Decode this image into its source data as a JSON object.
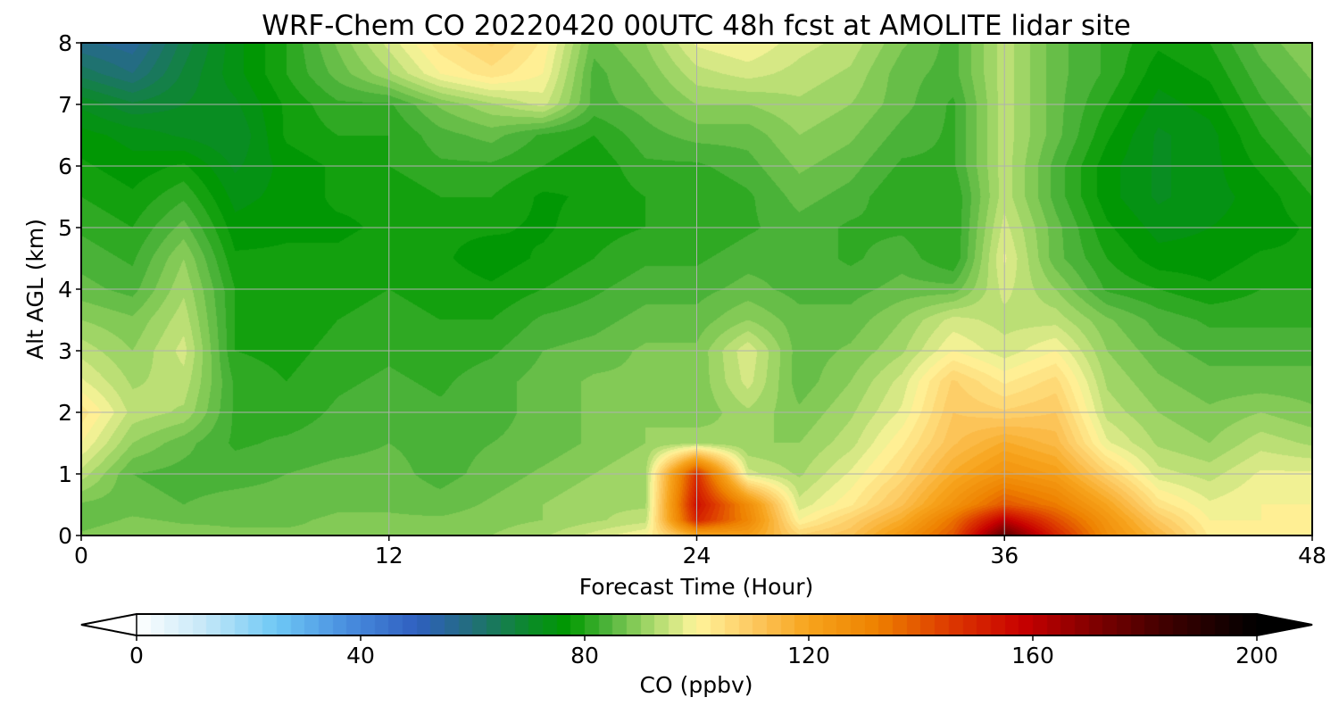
{
  "chart_data": {
    "type": "heatmap",
    "title": "WRF-Chem CO  20220420 00UTC 48h fcst at AMOLITE lidar site",
    "xlabel": "Forecast Time (Hour)",
    "ylabel": "Alt AGL (km)",
    "xlim": [
      0,
      48
    ],
    "ylim": [
      0,
      8
    ],
    "x_ticks": [
      "0",
      "12",
      "24",
      "36",
      "48"
    ],
    "y_ticks": [
      "0",
      "1",
      "2",
      "3",
      "4",
      "5",
      "6",
      "7",
      "8"
    ],
    "grid": true,
    "colorbar": {
      "label": "CO  (ppbv)",
      "range": [
        0,
        200
      ],
      "ticks": [
        "0",
        "40",
        "80",
        "120",
        "160",
        "200"
      ],
      "extend": "both",
      "placement": "bottom",
      "stops": [
        {
          "value": 0,
          "color": "#ffffff"
        },
        {
          "value": 12,
          "color": "#c6e8f8"
        },
        {
          "value": 25,
          "color": "#6ec8f5"
        },
        {
          "value": 37,
          "color": "#4a90e0"
        },
        {
          "value": 50,
          "color": "#2f5fc0"
        },
        {
          "value": 60,
          "color": "#226e7a"
        },
        {
          "value": 70,
          "color": "#0b8a2a"
        },
        {
          "value": 77,
          "color": "#009900"
        },
        {
          "value": 84,
          "color": "#4db33a"
        },
        {
          "value": 92,
          "color": "#a8d96a"
        },
        {
          "value": 100,
          "color": "#fff59c"
        },
        {
          "value": 110,
          "color": "#fdc860"
        },
        {
          "value": 120,
          "color": "#f7a41c"
        },
        {
          "value": 132,
          "color": "#ee8200"
        },
        {
          "value": 145,
          "color": "#dd3a00"
        },
        {
          "value": 158,
          "color": "#c80000"
        },
        {
          "value": 172,
          "color": "#7a0000"
        },
        {
          "value": 185,
          "color": "#3a0000"
        },
        {
          "value": 200,
          "color": "#000000"
        }
      ]
    },
    "x_hours": [
      0,
      2,
      4,
      6,
      8,
      10,
      12,
      14,
      16,
      18,
      20,
      22,
      24,
      26,
      28,
      30,
      32,
      34,
      36,
      38,
      40,
      42,
      44,
      46,
      48
    ],
    "z_levels_km": [
      0,
      0.25,
      0.5,
      1,
      1.5,
      2,
      2.5,
      3,
      3.5,
      4,
      4.5,
      5,
      5.5,
      6,
      6.5,
      7,
      7.5,
      8
    ],
    "co_ppbv": [
      [
        88,
        90,
        89,
        88,
        88,
        88,
        88,
        88,
        90,
        92,
        96,
        100,
        118,
        122,
        108,
        112,
        125,
        140,
        178,
        150,
        128,
        115,
        102,
        100,
        100
      ],
      [
        86,
        88,
        87,
        87,
        87,
        88,
        88,
        88,
        89,
        90,
        92,
        94,
        150,
        130,
        100,
        108,
        118,
        135,
        160,
        142,
        125,
        110,
        100,
        100,
        100
      ],
      [
        87,
        86,
        85,
        86,
        86,
        87,
        87,
        86,
        88,
        90,
        92,
        92,
        155,
        128,
        96,
        102,
        112,
        126,
        140,
        133,
        120,
        104,
        98,
        100,
        100
      ],
      [
        94,
        85,
        84,
        84,
        85,
        86,
        86,
        84,
        86,
        88,
        90,
        92,
        148,
        96,
        92,
        98,
        106,
        118,
        126,
        122,
        108,
        96,
        94,
        98,
        98
      ],
      [
        100,
        90,
        86,
        82,
        83,
        84,
        85,
        84,
        85,
        86,
        88,
        90,
        92,
        90,
        90,
        94,
        102,
        112,
        118,
        114,
        98,
        92,
        90,
        94,
        92
      ],
      [
        104,
        94,
        92,
        82,
        81,
        83,
        84,
        83,
        84,
        86,
        88,
        90,
        88,
        92,
        88,
        92,
        98,
        110,
        108,
        110,
        94,
        90,
        88,
        90,
        88
      ],
      [
        98,
        92,
        94,
        82,
        80,
        82,
        83,
        82,
        84,
        86,
        88,
        88,
        88,
        96,
        86,
        90,
        96,
        108,
        102,
        106,
        92,
        88,
        86,
        86,
        86
      ],
      [
        94,
        90,
        96,
        80,
        79,
        81,
        82,
        81,
        82,
        85,
        86,
        88,
        88,
        97,
        86,
        88,
        92,
        100,
        96,
        100,
        90,
        86,
        84,
        84,
        84
      ],
      [
        90,
        88,
        94,
        80,
        78,
        80,
        81,
        80,
        80,
        83,
        84,
        86,
        86,
        90,
        86,
        86,
        90,
        96,
        94,
        94,
        88,
        84,
        82,
        82,
        82
      ],
      [
        86,
        84,
        92,
        80,
        78,
        79,
        80,
        79,
        78,
        80,
        82,
        84,
        84,
        86,
        84,
        84,
        86,
        86,
        96,
        90,
        82,
        80,
        78,
        80,
        80
      ],
      [
        84,
        82,
        90,
        78,
        78,
        78,
        79,
        78,
        76,
        78,
        80,
        82,
        82,
        84,
        84,
        82,
        84,
        80,
        98,
        86,
        80,
        76,
        76,
        78,
        78
      ],
      [
        82,
        80,
        86,
        76,
        77,
        77,
        78,
        78,
        78,
        77,
        79,
        80,
        80,
        82,
        84,
        82,
        82,
        80,
        96,
        86,
        78,
        74,
        75,
        76,
        78
      ],
      [
        80,
        78,
        82,
        74,
        76,
        78,
        78,
        80,
        80,
        77,
        78,
        80,
        80,
        82,
        86,
        84,
        80,
        80,
        94,
        84,
        76,
        72,
        74,
        76,
        80
      ],
      [
        78,
        76,
        78,
        72,
        76,
        78,
        80,
        82,
        82,
        80,
        78,
        82,
        82,
        84,
        88,
        86,
        82,
        82,
        94,
        84,
        76,
        72,
        74,
        78,
        82
      ],
      [
        76,
        74,
        72,
        70,
        78,
        80,
        80,
        84,
        86,
        82,
        80,
        84,
        86,
        86,
        90,
        88,
        84,
        82,
        94,
        86,
        78,
        72,
        74,
        80,
        84
      ],
      [
        72,
        68,
        70,
        72,
        78,
        82,
        82,
        88,
        92,
        96,
        84,
        86,
        90,
        90,
        92,
        90,
        86,
        82,
        94,
        86,
        80,
        74,
        76,
        82,
        86
      ],
      [
        64,
        60,
        68,
        74,
        80,
        86,
        92,
        100,
        104,
        100,
        84,
        88,
        94,
        96,
        94,
        92,
        86,
        84,
        94,
        86,
        82,
        76,
        78,
        84,
        88
      ],
      [
        58,
        56,
        66,
        74,
        80,
        88,
        96,
        104,
        108,
        102,
        86,
        90,
        98,
        100,
        96,
        94,
        88,
        84,
        94,
        86,
        82,
        78,
        80,
        86,
        90
      ]
    ]
  }
}
